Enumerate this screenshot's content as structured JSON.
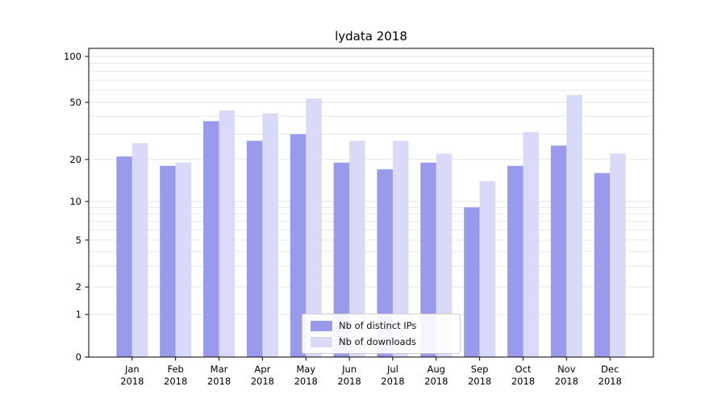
{
  "figure": {
    "title": "lydata 2018"
  },
  "chart_data": {
    "type": "bar",
    "title": "lydata 2018",
    "categories": [
      "Jan",
      "Feb",
      "Mar",
      "Apr",
      "May",
      "Jun",
      "Jul",
      "Aug",
      "Sep",
      "Oct",
      "Nov",
      "Dec"
    ],
    "x_tick_year": "2018",
    "series": [
      {
        "name": "Nb of distinct IPs",
        "color": "#9a9aed",
        "values": [
          21,
          18,
          37,
          27,
          30,
          19,
          17,
          19,
          9,
          18,
          25,
          16
        ]
      },
      {
        "name": "Nb of downloads",
        "color": "#d9d9f8",
        "values": [
          26,
          19,
          44,
          42,
          53,
          27,
          27,
          22,
          14,
          31,
          56,
          22
        ]
      }
    ],
    "y_axis": {
      "scale": "symlog",
      "ticks": [
        100,
        50,
        20,
        10,
        5,
        2,
        1,
        0
      ],
      "minor_gridlines": [
        1,
        2,
        3,
        4,
        5,
        6,
        7,
        8,
        9,
        10,
        20,
        30,
        40,
        50,
        60,
        70,
        80,
        90,
        100
      ],
      "range": [
        0,
        110
      ]
    },
    "grid": true,
    "legend": {
      "position": "lower center",
      "entries": [
        "Nb of distinct IPs",
        "Nb of downloads"
      ]
    },
    "colors": {
      "grid": "#e6e6e6",
      "axis": "#000000",
      "tick_text": "#000000",
      "legend_border": "#cccccc"
    }
  }
}
